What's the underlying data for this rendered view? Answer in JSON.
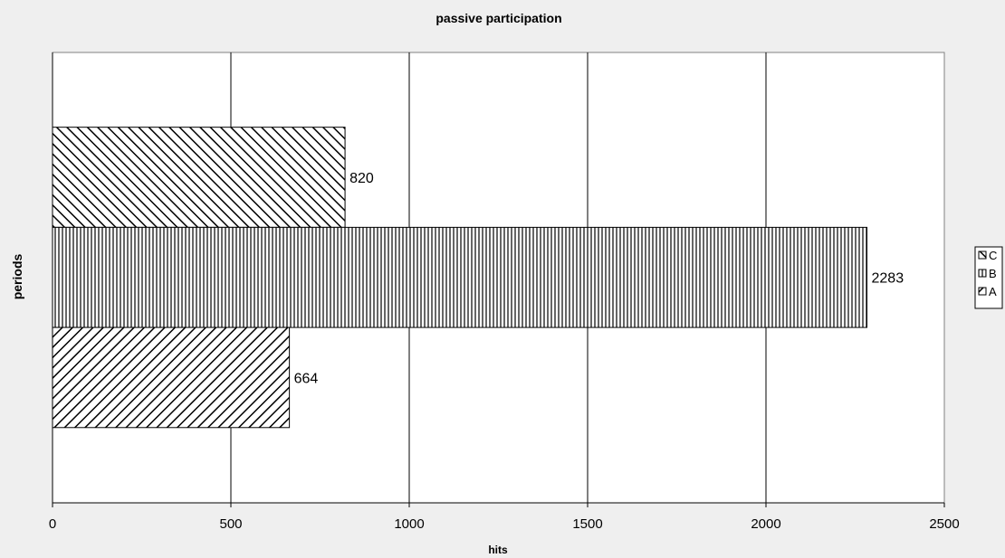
{
  "chart_data": {
    "type": "bar",
    "orientation": "horizontal",
    "title": "passive participation",
    "xlabel": "hits",
    "ylabel": "periods",
    "xlim": [
      0,
      2500
    ],
    "x_ticks": [
      0,
      500,
      1000,
      1500,
      2000,
      2500
    ],
    "x_tick_labels": [
      "0",
      "500",
      "1000",
      "1500",
      "2000",
      "2500"
    ],
    "grid": "vertical",
    "legend_position": "right",
    "series": [
      {
        "name": "C",
        "value": 820,
        "data_label": "820",
        "pattern": "hatch-backslash"
      },
      {
        "name": "B",
        "value": 2283,
        "data_label": "2283",
        "pattern": "vertical-lines"
      },
      {
        "name": "A",
        "value": 664,
        "data_label": "664",
        "pattern": "hatch-slash"
      }
    ],
    "legend": [
      "C",
      "B",
      "A"
    ],
    "colors": {
      "background": "#efefef",
      "plot_area": "#ffffff",
      "ink": "#000000"
    }
  }
}
